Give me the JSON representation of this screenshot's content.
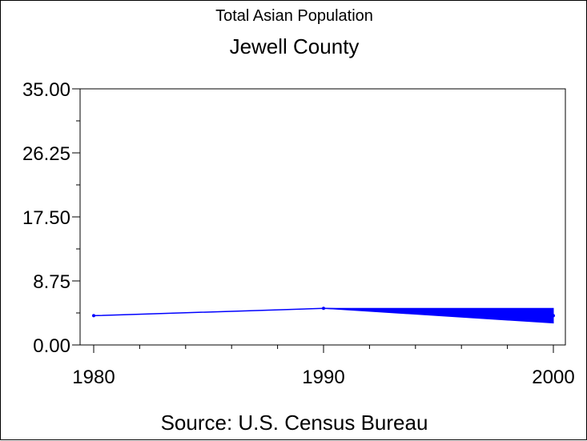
{
  "chart_data": {
    "type": "line",
    "title": "Total Asian Population",
    "subtitle": "Jewell County",
    "source": "Source: U.S. Census Bureau",
    "x": [
      1980,
      1990,
      2000
    ],
    "x_tick_labels": [
      "1980",
      "1990",
      "2000"
    ],
    "y_tick_labels": [
      "0.00",
      "8.75",
      "17.50",
      "26.25",
      "35.00"
    ],
    "y_ticks": [
      0,
      8.75,
      17.5,
      26.25,
      35
    ],
    "ylim": [
      0,
      35
    ],
    "xlim": [
      1980,
      2000
    ],
    "series": [
      {
        "values": [
          4,
          5,
          4
        ],
        "color": "#0000ff"
      }
    ],
    "band_2000": {
      "low": 3,
      "high": 5
    },
    "grid": false
  }
}
